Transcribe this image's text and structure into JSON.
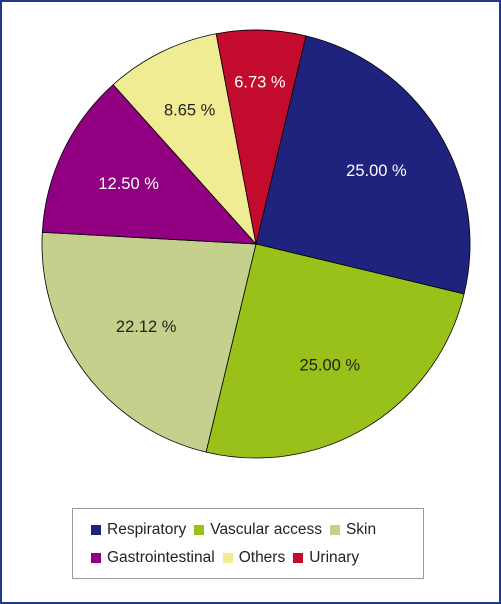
{
  "chart_data": {
    "type": "pie",
    "slices": [
      {
        "name": "Respiratory",
        "value": 25.0,
        "label": "25.00 %",
        "color": "#1f237e"
      },
      {
        "name": "Vascular access",
        "value": 25.0,
        "label": "25.00 %",
        "color": "#99c11a"
      },
      {
        "name": "Skin",
        "value": 22.12,
        "label": "22.12 %",
        "color": "#c4d08c"
      },
      {
        "name": "Gastrointestinal",
        "value": 12.5,
        "label": "12.50 %",
        "color": "#900081"
      },
      {
        "name": "Others",
        "value": 8.65,
        "label": "8.65 %",
        "color": "#f0ec93"
      },
      {
        "name": "Urinary",
        "value": 6.73,
        "label": "6.73 %",
        "color": "#c20b2d"
      }
    ],
    "legend_position": "bottom",
    "start_angle_deg": 13.5
  },
  "legend": {
    "row1": [
      "Respiratory",
      "Vascular access",
      "Skin"
    ],
    "row2": [
      "Gastrointestinal",
      "Others",
      "Urinary"
    ]
  }
}
